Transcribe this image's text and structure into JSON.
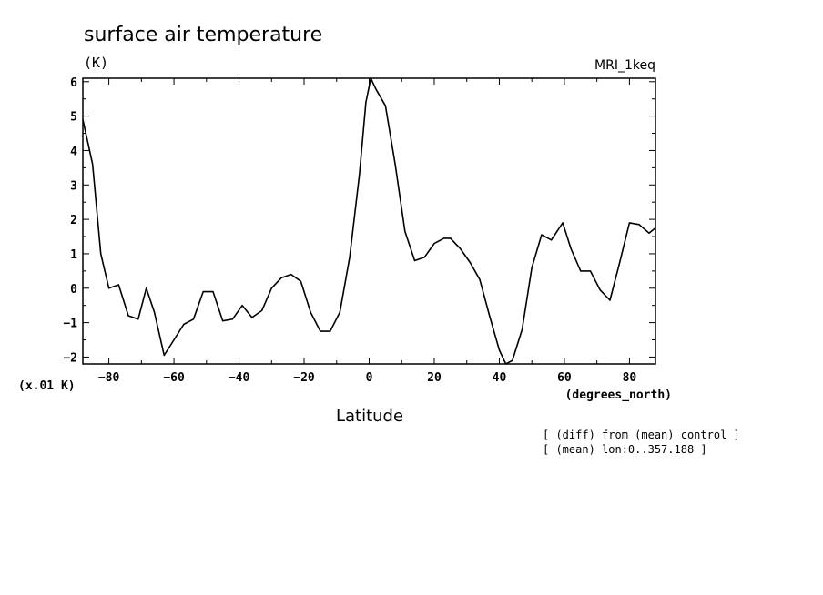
{
  "chart_data": {
    "type": "line",
    "title": "surface air temperature",
    "units_label": "(K)",
    "model_label": "MRI_1keq",
    "scale_label": "(x.01 K)",
    "x_units_label": "(degrees_north)",
    "xlabel": "Latitude",
    "notes": [
      "[ (diff) from (mean) control ]",
      "[ (mean) lon:0..357.188 ]"
    ],
    "xlim": [
      -88,
      88
    ],
    "ylim": [
      -2.2,
      6.1
    ],
    "x_ticks": [
      -80,
      -60,
      -40,
      -20,
      0,
      20,
      40,
      60,
      80
    ],
    "x_tick_labels": [
      "−80",
      "−60",
      "−40",
      "−20",
      "0",
      "20",
      "40",
      "60",
      "80"
    ],
    "y_ticks": [
      -2,
      -1,
      0,
      1,
      2,
      3,
      4,
      5,
      6
    ],
    "y_tick_labels": [
      "−2",
      "−1",
      "0",
      "1",
      "2",
      "3",
      "4",
      "5",
      "6"
    ],
    "grid": false,
    "series": [
      {
        "color": "#000000",
        "x": [
          -88,
          -85,
          -82.5,
          -80,
          -77,
          -74,
          -71,
          -68.5,
          -66,
          -63,
          -60,
          -57,
          -54,
          -51,
          -48,
          -45,
          -42,
          -39,
          -36,
          -33,
          -30,
          -27,
          -24,
          -21,
          -18,
          -15,
          -12,
          -9,
          -6,
          -3,
          -1,
          0.5,
          2,
          5,
          8,
          11,
          14,
          17,
          20,
          23,
          25,
          28,
          31,
          34,
          37,
          40,
          42,
          44,
          47,
          50,
          53,
          56,
          59.5,
          62,
          65,
          68,
          71,
          74,
          77,
          80,
          83,
          86,
          88
        ],
        "y": [
          4.9,
          3.6,
          1.0,
          0.0,
          0.1,
          -0.8,
          -0.9,
          0.0,
          -0.7,
          -1.95,
          -1.5,
          -1.05,
          -0.9,
          -0.1,
          -0.1,
          -0.95,
          -0.9,
          -0.5,
          -0.85,
          -0.65,
          0.0,
          0.3,
          0.4,
          0.2,
          -0.7,
          -1.25,
          -1.25,
          -0.7,
          0.9,
          3.3,
          5.4,
          6.1,
          5.8,
          5.3,
          3.6,
          1.65,
          0.8,
          0.9,
          1.3,
          1.45,
          1.45,
          1.15,
          0.75,
          0.25,
          -0.8,
          -1.8,
          -2.2,
          -2.1,
          -1.2,
          0.6,
          1.55,
          1.4,
          1.9,
          1.15,
          0.5,
          0.5,
          -0.05,
          -0.35,
          0.75,
          1.9,
          1.85,
          1.6,
          1.75
        ]
      }
    ]
  }
}
